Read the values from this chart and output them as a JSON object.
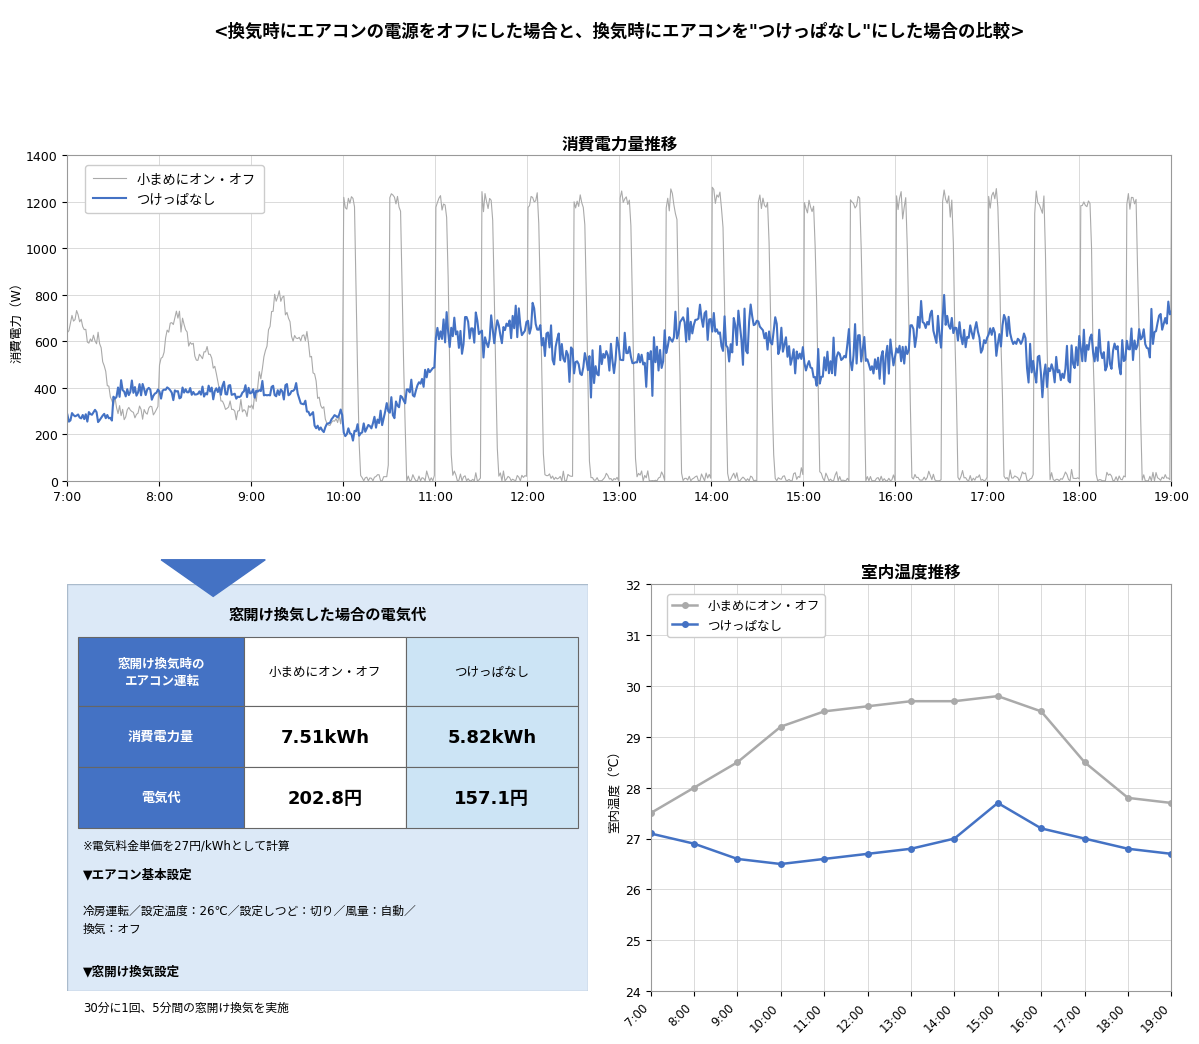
{
  "title_main": "<換気時にエアコンの電源をオフにした場合と、換気時にエアコンを\"つけっぱなし\"にした場合の比較>",
  "chart1_title": "消費電力量推移",
  "chart2_title": "室内温度推移",
  "legend_onoff": "小まめにオン・オフ",
  "legend_tuke": "つけっぱなし",
  "ylabel1": "消費電力（W）",
  "ylabel2": "室内温度（℃）",
  "ylim1": [
    0,
    1400
  ],
  "ylim2": [
    24,
    32
  ],
  "yticks1": [
    0,
    200,
    400,
    600,
    800,
    1000,
    1200,
    1400
  ],
  "yticks2": [
    24,
    25,
    26,
    27,
    28,
    29,
    30,
    31,
    32
  ],
  "xtick_labels": [
    "7:00",
    "8:00",
    "9:00",
    "10:00",
    "11:00",
    "12:00",
    "13:00",
    "14:00",
    "15:00",
    "16:00",
    "17:00",
    "18:00",
    "19:00"
  ],
  "color_onoff": "#aaaaaa",
  "color_tuke": "#4472c4",
  "table_title": "窓開け換気した場合の電気代",
  "note1": "※電気料金単価を27円/kWhとして計算",
  "note2": "▼エアコン基本設定",
  "note3": "冷房運転／設定温度：26℃／設定しつど：切り／風量：自動／\n換気：オフ",
  "note4": "▼窓開け換気設定",
  "note5": "30分に1回、5分間の窓開け換気を実施",
  "temp_times": [
    7,
    8,
    9,
    10,
    11,
    12,
    13,
    14,
    15,
    16,
    17,
    18,
    19
  ],
  "temp_onoff": [
    27.5,
    28.0,
    28.5,
    29.2,
    29.5,
    29.6,
    29.7,
    29.7,
    29.8,
    29.5,
    28.5,
    27.8,
    27.7
  ],
  "temp_tuke": [
    27.1,
    26.9,
    26.6,
    26.5,
    26.6,
    26.7,
    26.8,
    27.0,
    27.7,
    27.2,
    27.0,
    26.8,
    26.7
  ]
}
